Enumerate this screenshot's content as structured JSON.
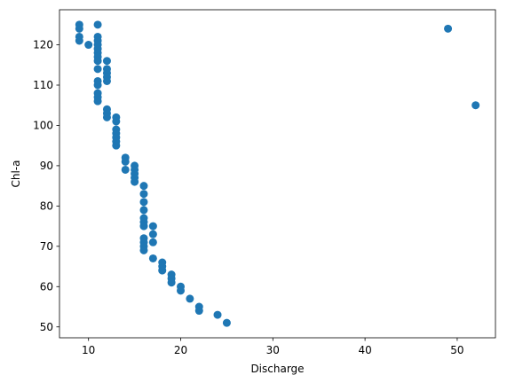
{
  "chart_data": {
    "type": "scatter",
    "xlabel": "Discharge",
    "ylabel": "Chl-a",
    "xlim": [
      6.85,
      54.15
    ],
    "ylim": [
      47.3,
      128.7
    ],
    "xticks": [
      10,
      20,
      30,
      40,
      50
    ],
    "yticks": [
      50,
      60,
      70,
      80,
      90,
      100,
      110,
      120
    ],
    "grid": false,
    "marker_color": "#1f77b4",
    "series": [
      {
        "points": [
          [
            9,
            125
          ],
          [
            9,
            124
          ],
          [
            9,
            122
          ],
          [
            9,
            121
          ],
          [
            10,
            120
          ],
          [
            11,
            125
          ],
          [
            11,
            122
          ],
          [
            11,
            121
          ],
          [
            11,
            120
          ],
          [
            11,
            119
          ],
          [
            11,
            118
          ],
          [
            11,
            117
          ],
          [
            11,
            116
          ],
          [
            11,
            114
          ],
          [
            11,
            111
          ],
          [
            11,
            110
          ],
          [
            11,
            108
          ],
          [
            11,
            107
          ],
          [
            11,
            106
          ],
          [
            12,
            116
          ],
          [
            12,
            114
          ],
          [
            12,
            113
          ],
          [
            12,
            112
          ],
          [
            12,
            111
          ],
          [
            12,
            104
          ],
          [
            12,
            103
          ],
          [
            12,
            102
          ],
          [
            13,
            102
          ],
          [
            13,
            101
          ],
          [
            13,
            99
          ],
          [
            13,
            98
          ],
          [
            13,
            97
          ],
          [
            13,
            96
          ],
          [
            13,
            95
          ],
          [
            14,
            92
          ],
          [
            14,
            91
          ],
          [
            14,
            89
          ],
          [
            15,
            90
          ],
          [
            15,
            89
          ],
          [
            15,
            88
          ],
          [
            15,
            87
          ],
          [
            15,
            86
          ],
          [
            16,
            85
          ],
          [
            16,
            83
          ],
          [
            16,
            81
          ],
          [
            16,
            79
          ],
          [
            16,
            77
          ],
          [
            16,
            76
          ],
          [
            16,
            75
          ],
          [
            16,
            72
          ],
          [
            16,
            71
          ],
          [
            16,
            70
          ],
          [
            16,
            69
          ],
          [
            17,
            75
          ],
          [
            17,
            73
          ],
          [
            17,
            71
          ],
          [
            17,
            67
          ],
          [
            18,
            66
          ],
          [
            18,
            65
          ],
          [
            18,
            64
          ],
          [
            19,
            63
          ],
          [
            19,
            62
          ],
          [
            19,
            61
          ],
          [
            20,
            60
          ],
          [
            20,
            59
          ],
          [
            21,
            57
          ],
          [
            22,
            55
          ],
          [
            22,
            54
          ],
          [
            24,
            53
          ],
          [
            25,
            51
          ],
          [
            49,
            124
          ],
          [
            52,
            105
          ]
        ]
      }
    ]
  }
}
